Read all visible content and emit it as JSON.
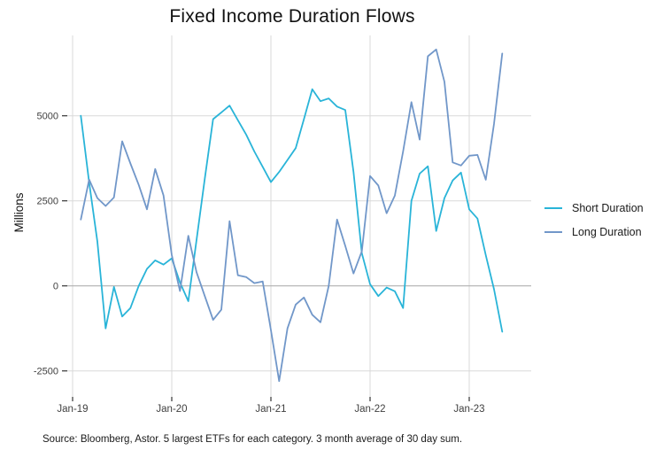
{
  "title": "Fixed Income Duration Flows",
  "source_note": "Source: Bloomberg, Astor. 5 largest ETFs for each category. 3 month average of 30 day sum.",
  "chart_data": {
    "type": "line",
    "title": "Fixed Income Duration Flows",
    "xlabel": "",
    "ylabel": "Millions",
    "grid": true,
    "legend_position": "right",
    "x_tick_labels": [
      "Jan-19",
      "Jan-20",
      "Jan-21",
      "Jan-22",
      "Jan-23"
    ],
    "y_tick_values": [
      5000,
      2500,
      0,
      -2500
    ],
    "y_tick_labels": [
      "5000",
      "2500",
      "0",
      "-2500"
    ],
    "ylim": [
      -3300,
      7400
    ],
    "x_range": [
      "Feb-19",
      "May-23"
    ],
    "x_months": [
      "Feb-19",
      "Mar-19",
      "Apr-19",
      "May-19",
      "Jun-19",
      "Jul-19",
      "Aug-19",
      "Sep-19",
      "Oct-19",
      "Nov-19",
      "Dec-19",
      "Jan-20",
      "Feb-20",
      "Mar-20",
      "Apr-20",
      "May-20",
      "Jun-20",
      "Jul-20",
      "Aug-20",
      "Sep-20",
      "Oct-20",
      "Nov-20",
      "Dec-20",
      "Jan-21",
      "Feb-21",
      "Mar-21",
      "Apr-21",
      "May-21",
      "Jun-21",
      "Jul-21",
      "Aug-21",
      "Sep-21",
      "Oct-21",
      "Nov-21",
      "Dec-21",
      "Jan-22",
      "Feb-22",
      "Mar-22",
      "Apr-22",
      "May-22",
      "Jun-22",
      "Jul-22",
      "Aug-22",
      "Sep-22",
      "Oct-22",
      "Nov-22",
      "Dec-22",
      "Jan-23",
      "Feb-23",
      "Mar-23",
      "Apr-23",
      "May-23"
    ],
    "series": [
      {
        "name": "Short Duration",
        "color": "#29b4d8",
        "values": [
          5000,
          3040,
          1300,
          -1250,
          -30,
          -900,
          -650,
          0,
          500,
          750,
          625,
          810,
          100,
          -450,
          1350,
          3150,
          4900,
          5100,
          5300,
          4870,
          4450,
          3950,
          3500,
          3050,
          3350,
          3700,
          4050,
          4900,
          5780,
          5430,
          5510,
          5270,
          5170,
          3350,
          960,
          50,
          -300,
          -50,
          -160,
          -650,
          2500,
          3300,
          3515,
          1615,
          2580,
          3100,
          3330,
          2250,
          1980,
          900,
          -100,
          -1350
        ]
      },
      {
        "name": "Long Duration",
        "color": "#7197c9",
        "values": [
          1950,
          3125,
          2580,
          2350,
          2600,
          4250,
          3600,
          2970,
          2250,
          3435,
          2655,
          910,
          -150,
          1475,
          400,
          -300,
          -1000,
          -700,
          1900,
          310,
          260,
          80,
          130,
          -1300,
          -2800,
          -1250,
          -550,
          -340,
          -850,
          -1070,
          0,
          1950,
          1175,
          365,
          1015,
          3230,
          2950,
          2135,
          2655,
          3950,
          5400,
          4300,
          6750,
          6950,
          6000,
          3630,
          3540,
          3825,
          3850,
          3120,
          4765,
          6830
        ]
      }
    ],
    "colors": {
      "grid_major": "#d9d9d9",
      "zero_line": "#b0b0b0",
      "tick_mark": "#333333",
      "tick_label": "#404040"
    }
  }
}
